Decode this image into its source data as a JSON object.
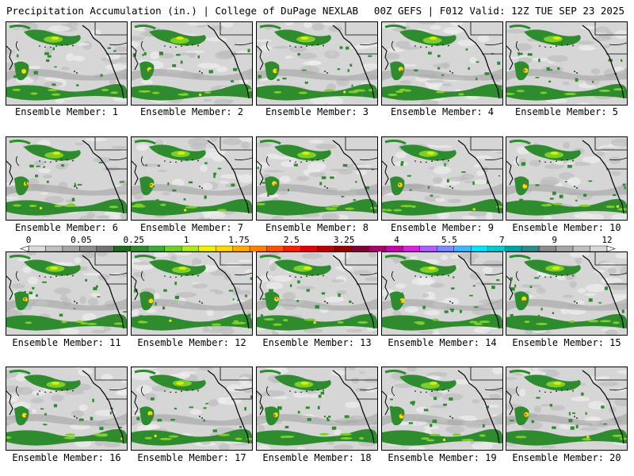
{
  "header": {
    "title": "Precipitation Accumulation (in.) | College of DuPage NEXLAB",
    "run_info": "00Z GEFS | F012 Valid: 12Z TUE SEP 23 2025"
  },
  "member_label_prefix": "Ensemble Member: ",
  "members": [
    "Ensemble Member: 1",
    "Ensemble Member: 2",
    "Ensemble Member: 3",
    "Ensemble Member: 4",
    "Ensemble Member: 5",
    "Ensemble Member: 6",
    "Ensemble Member: 7",
    "Ensemble Member: 8",
    "Ensemble Member: 9",
    "Ensemble Member: 10",
    "Ensemble Member: 11",
    "Ensemble Member: 12",
    "Ensemble Member: 13",
    "Ensemble Member: 14",
    "Ensemble Member: 15",
    "Ensemble Member: 16",
    "Ensemble Member: 17",
    "Ensemble Member: 18",
    "Ensemble Member: 19",
    "Ensemble Member: 20"
  ],
  "legend": {
    "tick_labels": [
      "0",
      "0.05",
      "0.25",
      "1",
      "1.75",
      "2.5",
      "3.25",
      "4",
      "5.5",
      "7",
      "9",
      "12"
    ],
    "colors": [
      "#d9d9d9",
      "#bfbfbf",
      "#a6a6a6",
      "#8c8c8c",
      "#737373",
      "#1e6b1e",
      "#2b8a2b",
      "#3cab3c",
      "#6ccf2a",
      "#aee81f",
      "#f0f000",
      "#ffd700",
      "#ffaa00",
      "#ff7f00",
      "#ff5000",
      "#ff1e00",
      "#e60000",
      "#bf0000",
      "#990000",
      "#80003a",
      "#a8006e",
      "#cc00aa",
      "#e020e0",
      "#b060ff",
      "#7a8cff",
      "#40b8ff",
      "#00e5ff",
      "#00cccc",
      "#00a3a3",
      "#2e8b8b",
      "#8c8c8c",
      "#a6a6a6",
      "#c0c0c0",
      "#d8d8d8"
    ]
  },
  "colors": {
    "background": "#ffffff",
    "map_base": "#d9d9d9",
    "precip_green": "#2e8b2e"
  }
}
